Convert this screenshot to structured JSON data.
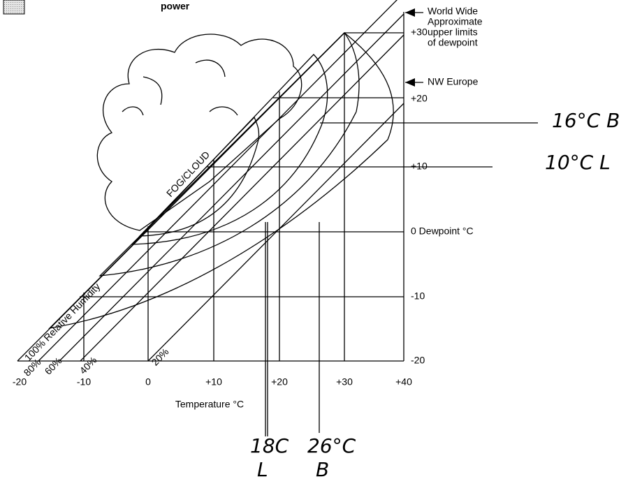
{
  "header": {
    "legend_label": "power"
  },
  "annotations": {
    "world_wide": [
      "World Wide",
      "Approximate",
      "upper limits",
      "of dewpoint"
    ],
    "nw_europe": "NW Europe",
    "fog_cloud": "FOG/CLOUD"
  },
  "y_axis": {
    "labels": [
      "+30",
      "+20",
      "+10",
      "0 Dewpoint °C",
      "-10",
      "-20"
    ]
  },
  "x_axis": {
    "labels": [
      "-20",
      "-10",
      "0",
      "+10",
      "+20",
      "+30",
      "+40"
    ],
    "title": "Temperature °C"
  },
  "humidity_labels": [
    "100% Relative Humidity",
    "80%",
    "60%",
    "40%",
    "20%"
  ],
  "handwritten": [
    "16°C B",
    "10°C L",
    "18C",
    "L",
    "26°C",
    "B"
  ]
}
